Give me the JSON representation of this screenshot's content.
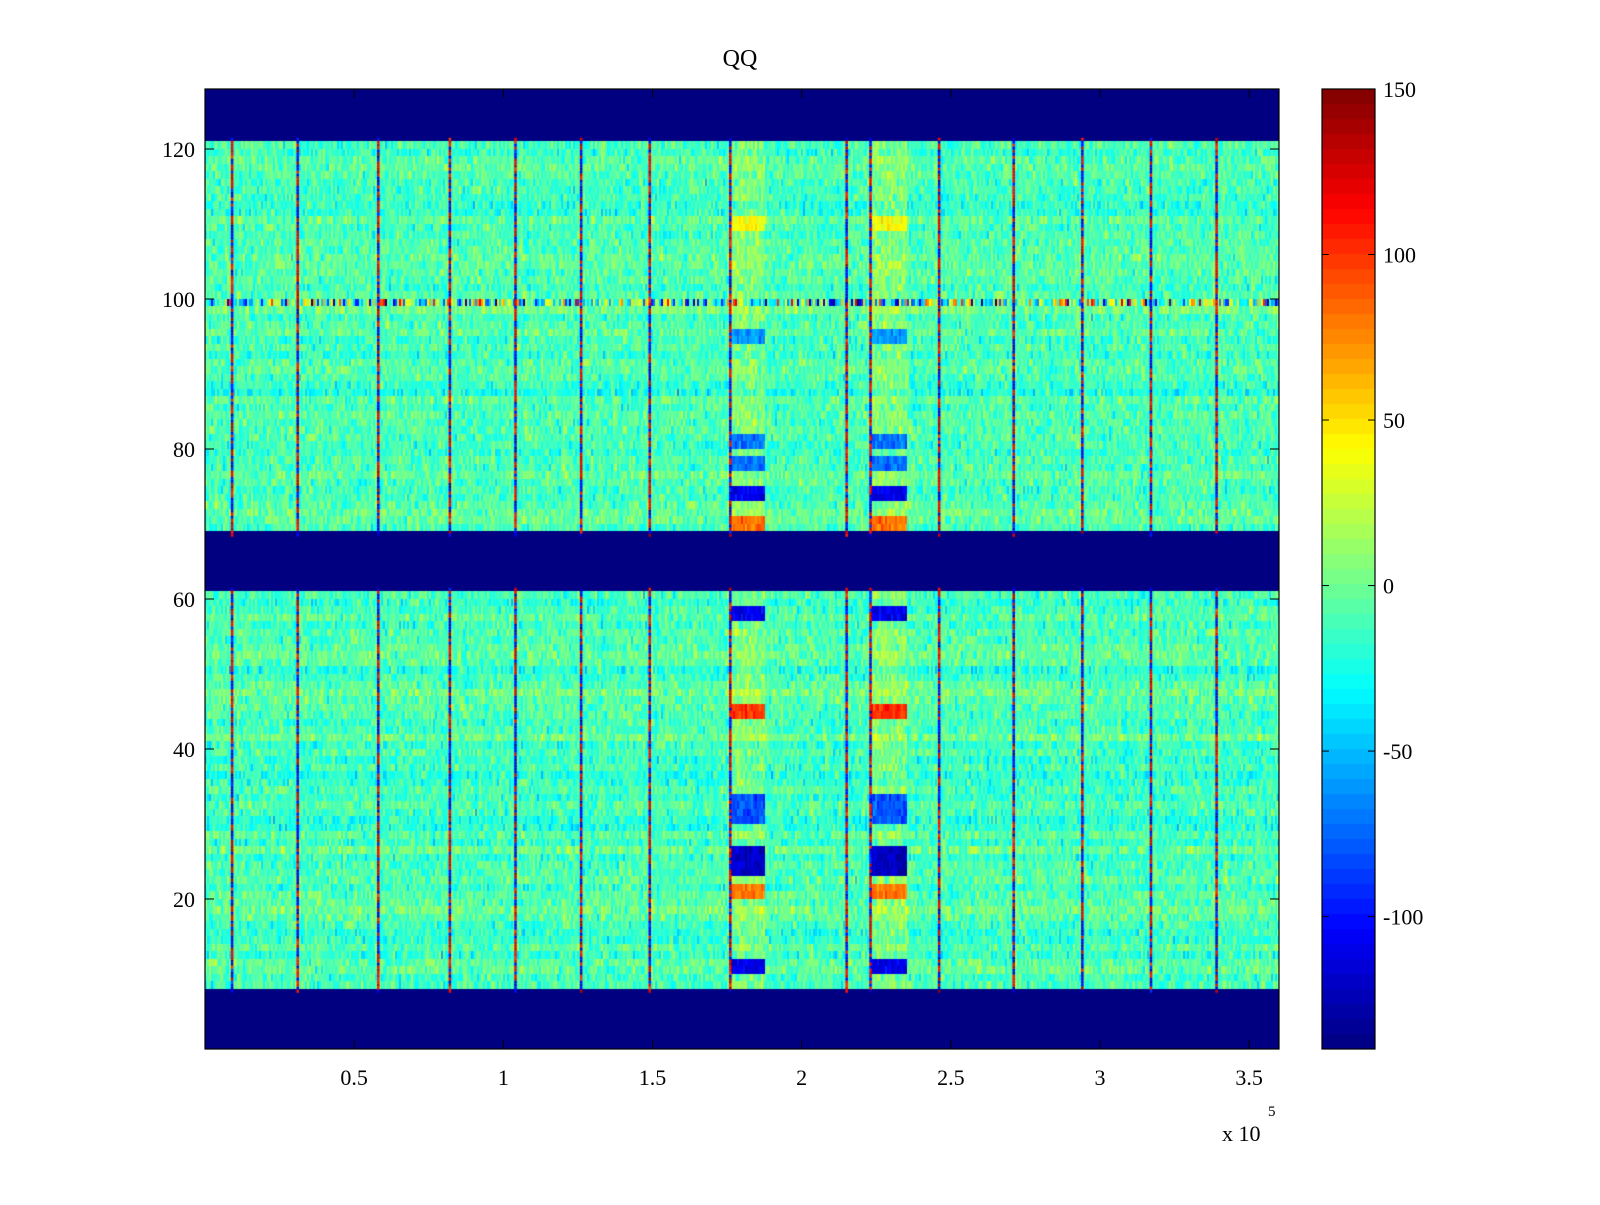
{
  "chart_data": {
    "type": "heatmap",
    "title": "QQ",
    "xlabel": "",
    "ylabel": "",
    "colormap": "jet",
    "x_exponent_label": "x 10",
    "x_exponent_power": "5",
    "xlim": [
      0,
      360000
    ],
    "ylim": [
      0,
      128
    ],
    "clim": [
      -140,
      150
    ],
    "x_ticks": [
      50000,
      100000,
      150000,
      200000,
      250000,
      300000,
      350000
    ],
    "x_tick_labels": [
      "0.5",
      "1",
      "1.5",
      "2",
      "2.5",
      "3",
      "3.5"
    ],
    "y_ticks": [
      20,
      40,
      60,
      80,
      100,
      120
    ],
    "y_tick_labels": [
      "20",
      "40",
      "60",
      "80",
      "100",
      "120"
    ],
    "colorbar_ticks": [
      150,
      100,
      50,
      0,
      -50,
      -100
    ],
    "colorbar_tick_labels": [
      "150",
      "100",
      "50",
      "0",
      "-50",
      "-100"
    ],
    "background_value": -10,
    "noise_amplitude": 25,
    "blank_row_bands": [
      {
        "y_from": 0,
        "y_to": 7.5,
        "value": -140
      },
      {
        "y_from": 61.5,
        "y_to": 68.5,
        "value": -140
      },
      {
        "y_from": 121.5,
        "y_to": 128,
        "value": -140
      }
    ],
    "stripe_x_positions": [
      9000,
      31000,
      58000,
      82000,
      104000,
      126000,
      149000,
      176000,
      215000,
      223000,
      246000,
      271000,
      294000,
      317000,
      339000
    ],
    "hot_zones": [
      {
        "x_from": 176000,
        "x_to": 188000
      },
      {
        "x_from": 223000,
        "x_to": 235000
      }
    ],
    "hot_zone_rows": [
      {
        "y": 11,
        "value": -110
      },
      {
        "y": 21,
        "value": 80
      },
      {
        "y": 24,
        "value": -120
      },
      {
        "y": 26,
        "value": -120
      },
      {
        "y": 31,
        "value": -80
      },
      {
        "y": 33,
        "value": -80
      },
      {
        "y": 45,
        "value": 100
      },
      {
        "y": 58,
        "value": -110
      },
      {
        "y": 70,
        "value": 80
      },
      {
        "y": 74,
        "value": -110
      },
      {
        "y": 78,
        "value": -70
      },
      {
        "y": 81,
        "value": -70
      },
      {
        "y": 95,
        "value": -60
      },
      {
        "y": 110,
        "value": 40
      }
    ],
    "noisy_row": {
      "y": 99.5,
      "spread": 120
    }
  }
}
